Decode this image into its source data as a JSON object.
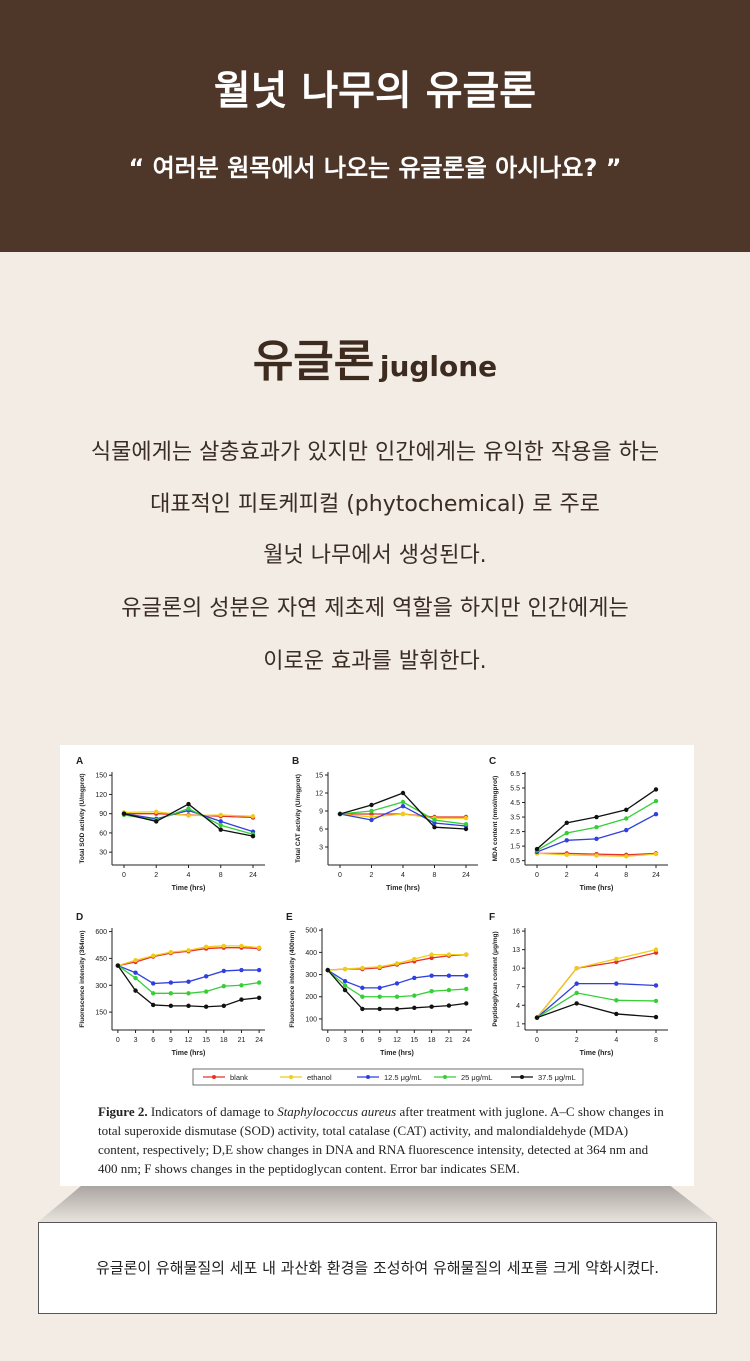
{
  "header": {
    "title": "월넛 나무의 유글론",
    "subtitle": "“ 여러분 원목에서 나오는 유글론을 아시나요? ”"
  },
  "section": {
    "title": "유글론",
    "title_en": "juglone",
    "body": [
      "식물에게는 살충효과가 있지만 인간에게는 유익한 작용을 하는",
      "대표적인 피토케피컬 (phytochemical) 로 주로",
      "월넛 나무에서 생성된다.",
      "유글론의 성분은 자연 제초제 역할을 하지만 인간에게는",
      "이로운 효과를 발휘한다."
    ]
  },
  "figure": {
    "legend": [
      {
        "name": "blank",
        "color": "#e8312a"
      },
      {
        "name": "ethanol",
        "color": "#f0cc1a"
      },
      {
        "name": "12.5 μg/mL",
        "color": "#2f3fe0"
      },
      {
        "name": "25 μg/mL",
        "color": "#36cf36"
      },
      {
        "name": "37.5 μg/mL",
        "color": "#111111"
      }
    ],
    "panels": [
      {
        "type": "line",
        "label": "A",
        "y_label": "Total SOD activity (U/mgprot)",
        "x_label": "Time (hrs)",
        "categories": [
          "0",
          "2",
          "4",
          "8",
          "24"
        ],
        "ylim": [
          10,
          155
        ],
        "yticks": [
          30,
          60,
          90,
          120,
          150
        ],
        "series": [
          {
            "values": [
              90,
              90,
              88,
              86,
              84
            ]
          },
          {
            "values": [
              92,
              93,
              87,
              88,
              86
            ]
          },
          {
            "values": [
              90,
              82,
              95,
              78,
              62
            ]
          },
          {
            "values": [
              88,
              80,
              98,
              72,
              58
            ]
          },
          {
            "values": [
              90,
              78,
              105,
              65,
              55
            ]
          }
        ]
      },
      {
        "type": "line",
        "label": "B",
        "y_label": "Total CAT activity (U/mgprot)",
        "x_label": "Time (hrs)",
        "categories": [
          "0",
          "2",
          "4",
          "8",
          "24"
        ],
        "ylim": [
          0,
          15.5
        ],
        "yticks": [
          3,
          6,
          9,
          12,
          15
        ],
        "series": [
          {
            "values": [
              8.5,
              8.5,
              8.5,
              8,
              8
            ]
          },
          {
            "values": [
              8.5,
              8,
              8.5,
              7.8,
              7.8
            ]
          },
          {
            "values": [
              8.5,
              7.5,
              9.8,
              7,
              6.5
            ]
          },
          {
            "values": [
              8.5,
              9,
              10.5,
              7.5,
              6.8
            ]
          },
          {
            "values": [
              8.5,
              10,
              12,
              6.3,
              6
            ]
          }
        ]
      },
      {
        "type": "line",
        "label": "C",
        "y_label": "MDA content (nmol/mgprot)",
        "x_label": "Time (hrs)",
        "categories": [
          "0",
          "2",
          "4",
          "8",
          "24"
        ],
        "ylim": [
          0.2,
          6.6
        ],
        "yticks": [
          0.5,
          1.5,
          2.5,
          3.5,
          4.5,
          5.5,
          6.5
        ],
        "series": [
          {
            "values": [
              1,
              1,
              0.95,
              0.9,
              1
            ]
          },
          {
            "values": [
              1,
              0.9,
              0.85,
              0.8,
              0.95
            ]
          },
          {
            "values": [
              1.1,
              1.9,
              2,
              2.6,
              3.7
            ]
          },
          {
            "values": [
              1.2,
              2.4,
              2.8,
              3.4,
              4.6
            ]
          },
          {
            "values": [
              1.3,
              3.1,
              3.5,
              4,
              5.4
            ]
          }
        ]
      },
      {
        "type": "line",
        "label": "D",
        "y_label": "Fluorescence intensity (364nm)",
        "x_label": "Time (hrs)",
        "x": [
          0,
          3,
          6,
          9,
          12,
          15,
          18,
          21,
          24
        ],
        "xlim": [
          -1,
          25
        ],
        "xticks": [
          0,
          3,
          6,
          9,
          12,
          15,
          18,
          21,
          24
        ],
        "ylim": [
          50,
          620
        ],
        "yticks": [
          150,
          300,
          450,
          600
        ],
        "series": [
          {
            "values": [
              410,
              430,
              460,
              480,
              490,
              505,
              510,
              510,
              505
            ]
          },
          {
            "values": [
              410,
              440,
              465,
              485,
              495,
              515,
              520,
              520,
              510
            ]
          },
          {
            "values": [
              410,
              370,
              310,
              315,
              320,
              350,
              380,
              385,
              385
            ]
          },
          {
            "values": [
              410,
              340,
              255,
              255,
              255,
              265,
              295,
              300,
              315
            ]
          },
          {
            "values": [
              410,
              270,
              190,
              185,
              185,
              180,
              185,
              220,
              230
            ]
          }
        ]
      },
      {
        "type": "line",
        "label": "E",
        "y_label": "Fluorescence intensity (400nm)",
        "x_label": "Time (hrs)",
        "x": [
          0,
          3,
          6,
          9,
          12,
          15,
          18,
          21,
          24
        ],
        "xlim": [
          -1,
          25
        ],
        "xticks": [
          0,
          3,
          6,
          9,
          12,
          15,
          18,
          21,
          24
        ],
        "ylim": [
          50,
          510
        ],
        "yticks": [
          100,
          200,
          300,
          400,
          500
        ],
        "series": [
          {
            "values": [
              320,
              325,
              325,
              330,
              345,
              360,
              375,
              385,
              390
            ]
          },
          {
            "values": [
              320,
              325,
              330,
              335,
              350,
              370,
              390,
              390,
              390
            ]
          },
          {
            "values": [
              320,
              270,
              240,
              240,
              260,
              285,
              295,
              295,
              295
            ]
          },
          {
            "values": [
              320,
              250,
              200,
              200,
              200,
              205,
              225,
              230,
              235
            ]
          },
          {
            "values": [
              320,
              230,
              145,
              145,
              145,
              150,
              155,
              160,
              170
            ]
          }
        ]
      },
      {
        "type": "line",
        "label": "F",
        "y_label": "Peptidoglycan content (μg/mg)",
        "x_label": "Time (hrs)",
        "categories": [
          "0",
          "2",
          "4",
          "8"
        ],
        "ylim": [
          0,
          16.5
        ],
        "yticks": [
          1,
          4,
          7,
          10,
          13,
          16
        ],
        "series": [
          {
            "values": [
              2,
              10,
              11,
              12.5
            ]
          },
          {
            "values": [
              2,
              10,
              11.5,
              13
            ]
          },
          {
            "values": [
              2,
              7.5,
              7.5,
              7.2
            ]
          },
          {
            "values": [
              2,
              6,
              4.8,
              4.7
            ]
          },
          {
            "values": [
              2,
              4.3,
              2.6,
              2.1
            ]
          }
        ]
      }
    ],
    "caption": {
      "label": "Figure 2.",
      "before": "Indicators of damage to",
      "species": "Staphylococcus aureus",
      "after": "after treatment with juglone. A–C show changes in total superoxide dismutase (SOD) activity, total catalase (CAT) activity, and malondialdehyde (MDA) content, respectively; D,E show changes in DNA and RNA fluorescence intensity, detected at 364 nm and 400 nm; F shows changes in the peptidoglycan content. Error bar indicates SEM."
    }
  },
  "note": "유글론이 유해물질의 세포 내 과산화 환경을 조성하여  유해물질의 세포를 크게 약화시켰다."
}
